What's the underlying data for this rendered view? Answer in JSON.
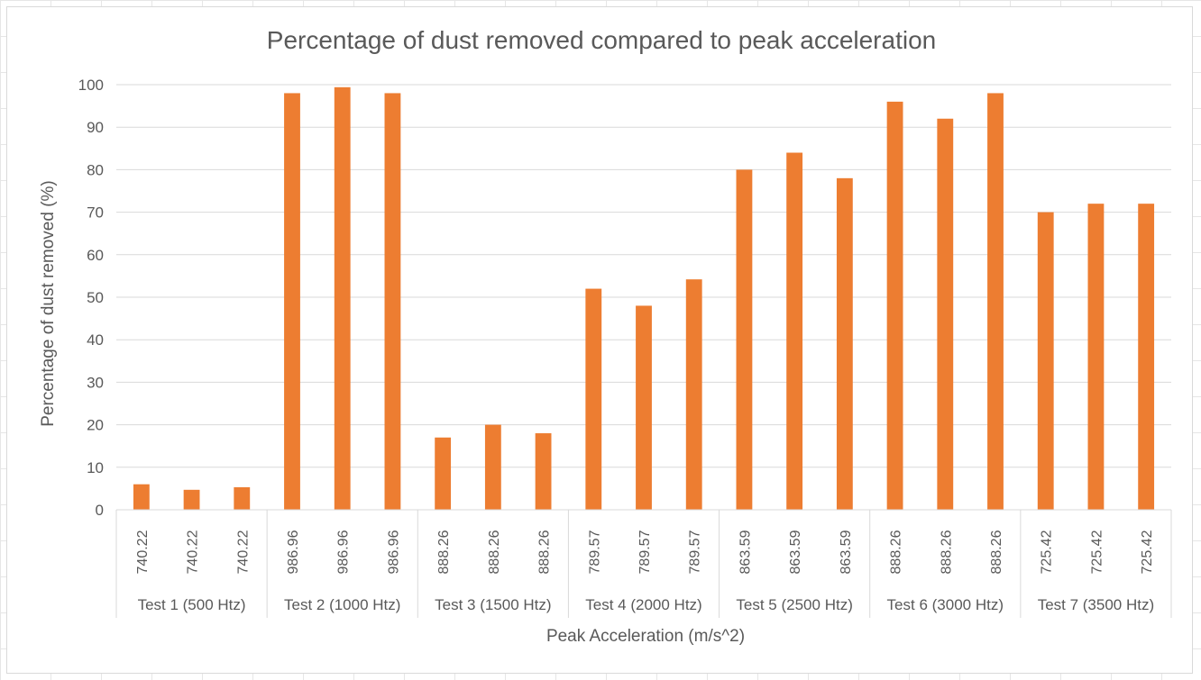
{
  "chart_data": {
    "type": "bar",
    "title": "Percentage of dust removed compared to peak acceleration",
    "xlabel": "Peak Acceleration (m/s^2)",
    "ylabel": "Percentage of dust removed (%)",
    "ylim": [
      0,
      100
    ],
    "yticks": [
      0,
      10,
      20,
      30,
      40,
      50,
      60,
      70,
      80,
      90,
      100
    ],
    "grid": true,
    "legend": "none",
    "bar_color": "#ED7D31",
    "groups": [
      {
        "label": "Test 1 (500 Htz)",
        "categories": [
          "740.22",
          "740.22",
          "740.22"
        ],
        "values": [
          6,
          4.7,
          5.3
        ]
      },
      {
        "label": "Test 2 (1000 Htz)",
        "categories": [
          "986.96",
          "986.96",
          "986.96"
        ],
        "values": [
          98,
          99.4,
          98
        ]
      },
      {
        "label": "Test 3 (1500 Htz)",
        "categories": [
          "888.26",
          "888.26",
          "888.26"
        ],
        "values": [
          17,
          20,
          18
        ]
      },
      {
        "label": "Test 4 (2000 Htz)",
        "categories": [
          "789.57",
          "789.57",
          "789.57"
        ],
        "values": [
          52,
          48,
          54.2
        ]
      },
      {
        "label": "Test 5 (2500 Htz)",
        "categories": [
          "863.59",
          "863.59",
          "863.59"
        ],
        "values": [
          80,
          84,
          78
        ]
      },
      {
        "label": "Test 6 (3000 Htz)",
        "categories": [
          "888.26",
          "888.26",
          "888.26"
        ],
        "values": [
          96,
          92,
          98
        ]
      },
      {
        "label": "Test 7 (3500 Htz)",
        "categories": [
          "725.42",
          "725.42",
          "725.42"
        ],
        "values": [
          70,
          72,
          72
        ]
      }
    ]
  }
}
